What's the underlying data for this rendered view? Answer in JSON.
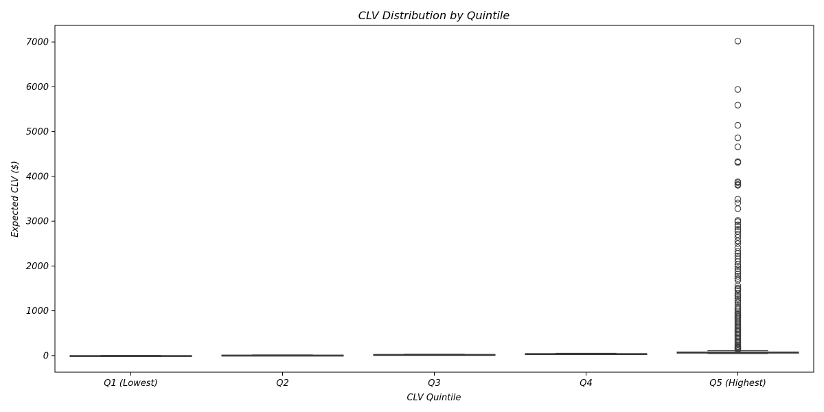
{
  "chart_data": {
    "type": "box",
    "title": "CLV Distribution by Quintile",
    "xlabel": "CLV Quintile",
    "ylabel": "Expected CLV ($)",
    "ylim": [
      -370,
      7370
    ],
    "yticks": [
      0,
      1000,
      2000,
      3000,
      4000,
      5000,
      6000,
      7000
    ],
    "categories": [
      "Q1 (Lowest)",
      "Q2",
      "Q3",
      "Q4",
      "Q5 (Highest)"
    ],
    "box_color": "#3a3a3a",
    "grid": false,
    "boxes": [
      {
        "category": "Q1 (Lowest)",
        "whisker_low": -10,
        "q1": -5,
        "median": -2,
        "q3": 0,
        "whisker_high": 2,
        "outliers": []
      },
      {
        "category": "Q2",
        "whisker_low": 1,
        "q1": 4,
        "median": 7,
        "q3": 11,
        "whisker_high": 16,
        "outliers": []
      },
      {
        "category": "Q3",
        "whisker_low": 14,
        "q1": 18,
        "median": 22,
        "q3": 27,
        "whisker_high": 33,
        "outliers": []
      },
      {
        "category": "Q4",
        "whisker_low": 28,
        "q1": 33,
        "median": 38,
        "q3": 45,
        "whisker_high": 52,
        "outliers": []
      },
      {
        "category": "Q5 (Highest)",
        "whisker_low": 45,
        "q1": 55,
        "median": 68,
        "q3": 80,
        "whisker_high": 110,
        "outliers": [
          7020,
          5940,
          5590,
          5140,
          4860,
          4660,
          4330,
          4310,
          3880,
          3860,
          3820,
          3800,
          3490,
          3410,
          3280,
          3020,
          2990,
          2920,
          2880,
          2820,
          2770,
          2700,
          2640,
          2560,
          2500,
          2410,
          2330,
          2280,
          2220,
          2160,
          2100,
          2030,
          1990,
          1940,
          1880,
          1820,
          1770,
          1720,
          1680,
          1560,
          1510,
          1480,
          1450,
          1380,
          1340,
          1310,
          1270,
          1230,
          1180,
          1120,
          1080,
          1040,
          1000,
          960,
          930,
          900,
          870,
          840,
          810,
          780,
          750,
          720,
          690,
          660,
          630,
          600,
          570,
          540,
          510,
          480,
          450,
          420,
          390,
          360,
          330,
          300,
          270,
          240,
          210,
          190,
          170,
          150,
          130
        ]
      }
    ]
  }
}
